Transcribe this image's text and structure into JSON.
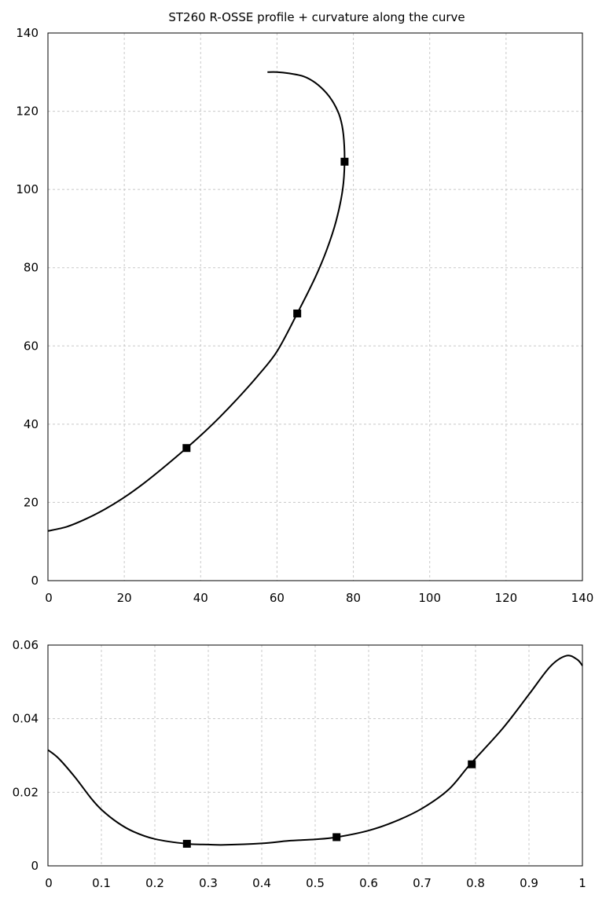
{
  "chart_data": [
    {
      "type": "line",
      "title": "ST260 R-OSSE profile + curvature along the curve",
      "xlabel": "",
      "ylabel": "",
      "xlim": [
        0,
        140
      ],
      "ylim": [
        0,
        140
      ],
      "xticks": [
        "0",
        "20",
        "40",
        "60",
        "80",
        "100",
        "120",
        "140"
      ],
      "yticks": [
        "0",
        "20",
        "40",
        "60",
        "80",
        "100",
        "120",
        "140"
      ],
      "grid": true,
      "series": [
        {
          "x": [
            0,
            5,
            10,
            15,
            20,
            25,
            30,
            36.3,
            40,
            45,
            50,
            55,
            60,
            65.3,
            70,
            73,
            75.5,
            77.2,
            77.7,
            77.4,
            76.5,
            75,
            73,
            70,
            67,
            63,
            60,
            57.5
          ],
          "y": [
            12.7,
            13.8,
            15.8,
            18.3,
            21.3,
            24.8,
            28.7,
            33.9,
            37.1,
            41.8,
            46.9,
            52.4,
            58.6,
            68.3,
            77.5,
            84.5,
            92,
            100,
            107.1,
            114,
            118.5,
            121.8,
            124.6,
            127.3,
            128.9,
            129.7,
            130,
            130
          ]
        }
      ],
      "markers": [
        {
          "x": 36.3,
          "y": 33.9
        },
        {
          "x": 65.3,
          "y": 68.3
        },
        {
          "x": 77.7,
          "y": 107.1
        }
      ]
    },
    {
      "type": "line",
      "title": "",
      "xlabel": "",
      "ylabel": "",
      "xlim": [
        0,
        1
      ],
      "ylim": [
        0,
        0.06
      ],
      "xticks": [
        "0",
        "0.1",
        "0.2",
        "0.3",
        "0.4",
        "0.5",
        "0.6",
        "0.7",
        "0.8",
        "0.9",
        "1"
      ],
      "yticks": [
        "0",
        "0.02",
        "0.04",
        "0.06"
      ],
      "grid": true,
      "series": [
        {
          "x": [
            0,
            0.02,
            0.05,
            0.08,
            0.1,
            0.13,
            0.16,
            0.2,
            0.26,
            0.3,
            0.33,
            0.4,
            0.45,
            0.5,
            0.54,
            0.6,
            0.65,
            0.7,
            0.75,
            0.79,
            0.85,
            0.9,
            0.94,
            0.97,
            0.99,
            1
          ],
          "y": [
            0.0315,
            0.0292,
            0.0242,
            0.0185,
            0.0153,
            0.0118,
            0.0093,
            0.0073,
            0.006,
            0.0058,
            0.0057,
            0.0061,
            0.0068,
            0.0072,
            0.0078,
            0.0096,
            0.0121,
            0.0156,
            0.0208,
            0.0276,
            0.0372,
            0.0466,
            0.0542,
            0.0571,
            0.0561,
            0.0544
          ]
        }
      ],
      "markers": [
        {
          "x": 0.26,
          "y": 0.006
        },
        {
          "x": 0.54,
          "y": 0.0078
        },
        {
          "x": 0.793,
          "y": 0.0276
        }
      ]
    }
  ]
}
